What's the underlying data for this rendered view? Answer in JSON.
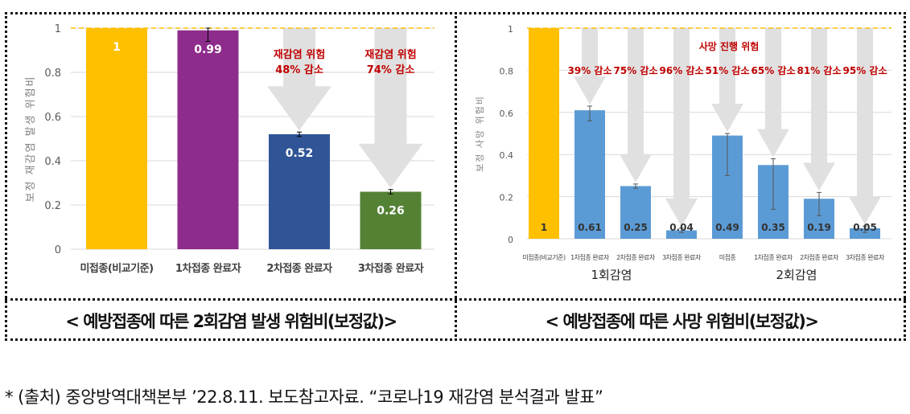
{
  "chart_data": [
    {
      "type": "bar",
      "title": "< 예방접종에 따른 2회감염 발생 위험비(보정값)>",
      "ylabel": "보정 재감염 발생 위험비",
      "ylim": [
        0,
        1
      ],
      "yticks": [
        "0",
        "0.2",
        "0.4",
        "0.6",
        "0.8",
        "1"
      ],
      "categories": [
        "미접종(비교기준)",
        "1차접종 완료자",
        "2차접종 완료자",
        "3차접종 완료자"
      ],
      "values": [
        1,
        0.99,
        0.52,
        0.26
      ],
      "labels": [
        "1",
        "0.99",
        "0.52",
        "0.26"
      ],
      "error_low": [
        1,
        0.94,
        0.51,
        0.25
      ],
      "error_high": [
        1,
        1.0,
        0.53,
        0.27
      ],
      "colors": [
        "#FFC000",
        "#8E2C8C",
        "#2F5597",
        "#548235"
      ],
      "reference_line": 1,
      "annotations": [
        {
          "category": 2,
          "lines": [
            "재감염 위험",
            "48% 감소"
          ]
        },
        {
          "category": 3,
          "lines": [
            "재감염 위험",
            "74% 감소"
          ]
        }
      ]
    },
    {
      "type": "bar",
      "title": "< 예방접종에 따른 사망 위험비(보정값)>",
      "ylabel": "보정 사망 위험비",
      "ylim": [
        0,
        1
      ],
      "yticks": [
        "0",
        "0.2",
        "0.4",
        "0.6",
        "0.8",
        "1"
      ],
      "categories": [
        "미접종(비교기준)",
        "1차접종 완료자",
        "2차접종 완료자",
        "3차접종 완료자",
        "미접종",
        "1차접종 완료자",
        "2차접종 완료자",
        "3차접종 완료자"
      ],
      "groups": [
        {
          "label": "1회감염",
          "from": 0,
          "to": 3
        },
        {
          "label": "2회감염",
          "from": 4,
          "to": 7
        }
      ],
      "values": [
        1,
        0.61,
        0.25,
        0.04,
        0.49,
        0.35,
        0.19,
        0.05
      ],
      "labels": [
        "1",
        "0.61",
        "0.25",
        "0.04",
        "0.49",
        "0.35",
        "0.19",
        "0.05"
      ],
      "error_low": [
        1,
        0.56,
        0.24,
        0.03,
        0.3,
        0.14,
        0.11,
        0.03
      ],
      "error_high": [
        1,
        0.63,
        0.26,
        0.05,
        0.5,
        0.38,
        0.22,
        0.06
      ],
      "colors": [
        "#FFC000",
        "#5B9BD5",
        "#5B9BD5",
        "#5B9BD5",
        "#5B9BD5",
        "#5B9BD5",
        "#5B9BD5",
        "#5B9BD5"
      ],
      "reference_line": 1,
      "header_annotation": "사망 진행 위험",
      "annotations": [
        "39% 감소",
        "75% 감소",
        "96% 감소",
        "51% 감소",
        "65% 감소",
        "81% 감소",
        "95% 감소"
      ]
    }
  ],
  "footnote": "* (출처) 중앙방역대책본부 ’22.8.11. 보도참고자료. “코로나19 재감염 분석결과 발표”"
}
